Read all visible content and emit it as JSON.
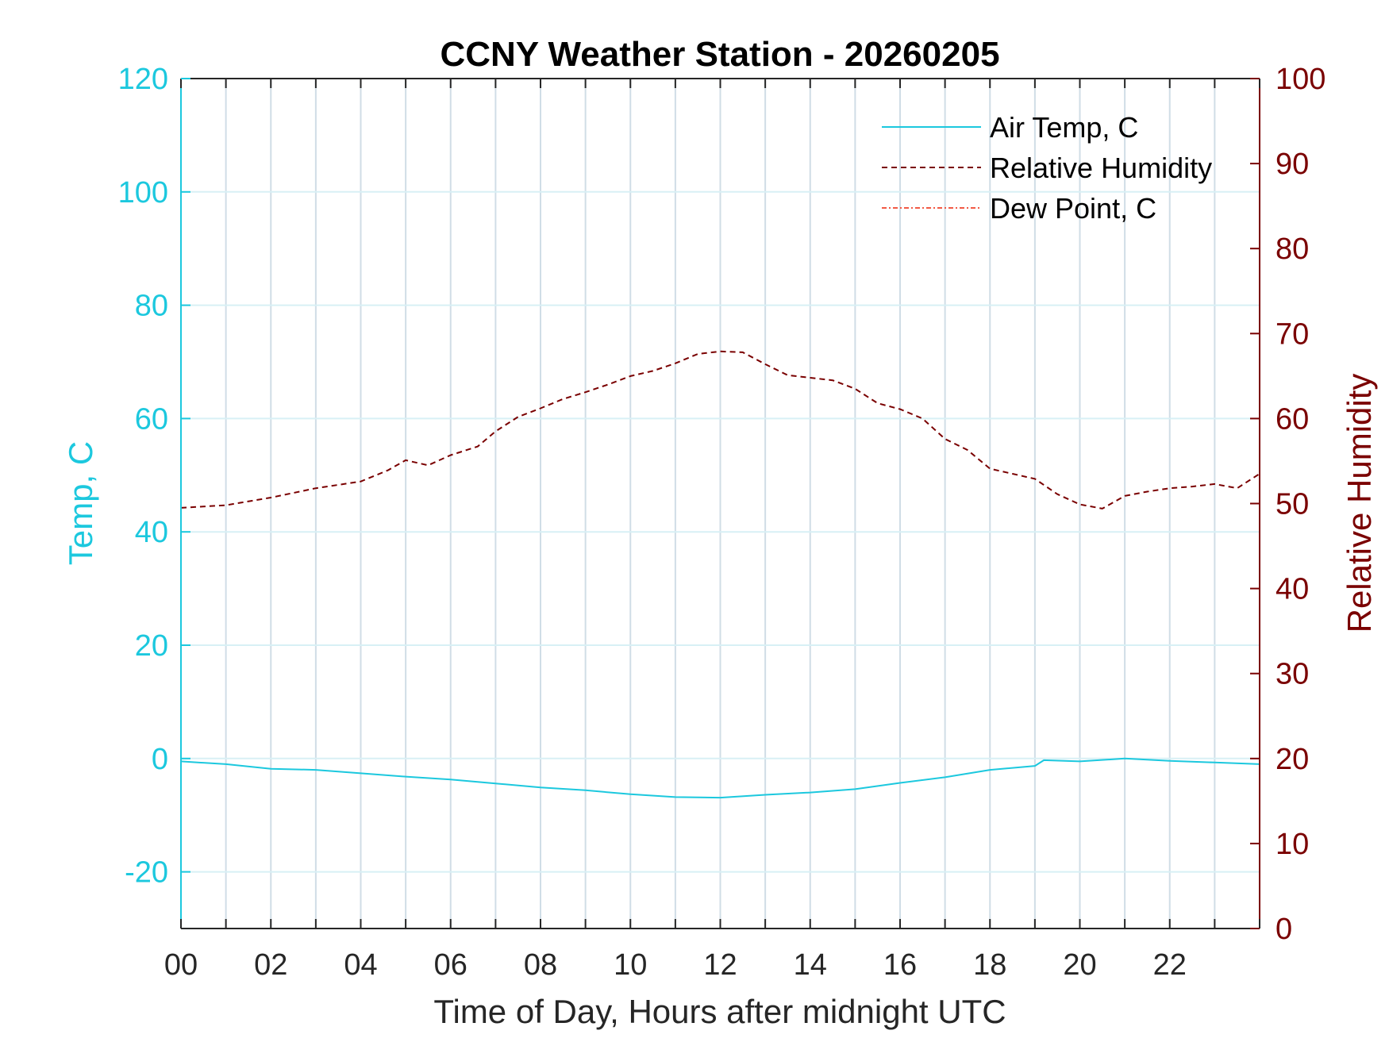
{
  "chart_data": {
    "type": "line",
    "title": "CCNY Weather Station - 20260205",
    "xlabel": "Time of Day, Hours after midnight UTC",
    "ylabel_left": "Temp, C",
    "ylabel_right": "Relative Humidity",
    "xlim": [
      0,
      24
    ],
    "ylim_left": [
      -30,
      120
    ],
    "ylim_right": [
      0,
      100
    ],
    "x_ticks": [
      0,
      2,
      4,
      6,
      8,
      10,
      12,
      14,
      16,
      18,
      20,
      22
    ],
    "x_tick_labels": [
      "00",
      "02",
      "04",
      "06",
      "08",
      "10",
      "12",
      "14",
      "16",
      "18",
      "20",
      "22"
    ],
    "y_left_ticks": [
      -20,
      0,
      20,
      40,
      60,
      80,
      100,
      120
    ],
    "y_left_tick_labels": [
      "-20",
      "0",
      "20",
      "40",
      "60",
      "80",
      "100",
      "120"
    ],
    "y_right_ticks": [
      0,
      10,
      20,
      30,
      40,
      50,
      60,
      70,
      80,
      90,
      100
    ],
    "y_right_tick_labels": [
      "0",
      "10",
      "20",
      "30",
      "40",
      "50",
      "60",
      "70",
      "80",
      "90",
      "100"
    ],
    "grid": true,
    "legend_position": "top-right",
    "colors": {
      "temp": "#1cc8de",
      "humidity": "#7a0000",
      "dewpoint": "#f25a45",
      "grid": "#d0dde6"
    },
    "series": [
      {
        "name": "Air Temp, C",
        "axis": "left",
        "style": "solid",
        "x": [
          0,
          1,
          2,
          3,
          4,
          5,
          6,
          7,
          8,
          9,
          10,
          11,
          12,
          13,
          14,
          15,
          16,
          17,
          18,
          19,
          19.2,
          20,
          21,
          22,
          23,
          24
        ],
        "y": [
          -0.5,
          -1.0,
          -1.8,
          -2.0,
          -2.6,
          -3.2,
          -3.7,
          -4.4,
          -5.1,
          -5.6,
          -6.3,
          -6.8,
          -6.9,
          -6.4,
          -6.0,
          -5.4,
          -4.3,
          -3.3,
          -2.0,
          -1.3,
          -0.3,
          -0.5,
          0.0,
          -0.4,
          -0.7,
          -1.0
        ]
      },
      {
        "name": "Relative Humidity",
        "axis": "right",
        "style": "dashed",
        "x": [
          0,
          1,
          2,
          3,
          4,
          4.6,
          5,
          5.5,
          6,
          6.6,
          7,
          7.5,
          8,
          8.5,
          9,
          9.5,
          10,
          10.5,
          11,
          11.5,
          12,
          12.5,
          13,
          13.5,
          14,
          14.5,
          15,
          15.5,
          16,
          16.5,
          17,
          17.5,
          18,
          18.5,
          19,
          19.5,
          20,
          20.5,
          21,
          21.5,
          22,
          22.5,
          23,
          23.5,
          24
        ],
        "y": [
          49.5,
          49.8,
          50.7,
          51.8,
          52.6,
          53.9,
          55.1,
          54.5,
          55.7,
          56.7,
          58.5,
          60.2,
          61.2,
          62.3,
          63.1,
          64.0,
          65.0,
          65.6,
          66.5,
          67.6,
          67.9,
          67.8,
          66.4,
          65.1,
          64.8,
          64.5,
          63.5,
          61.8,
          61.1,
          60.0,
          57.6,
          56.3,
          54.1,
          53.5,
          52.9,
          51.1,
          49.9,
          49.4,
          50.9,
          51.4,
          51.8,
          52.0,
          52.3,
          51.8,
          53.5
        ]
      },
      {
        "name": "Dew Point, C",
        "axis": "left",
        "style": "dashdot",
        "x": [],
        "y": []
      }
    ]
  }
}
